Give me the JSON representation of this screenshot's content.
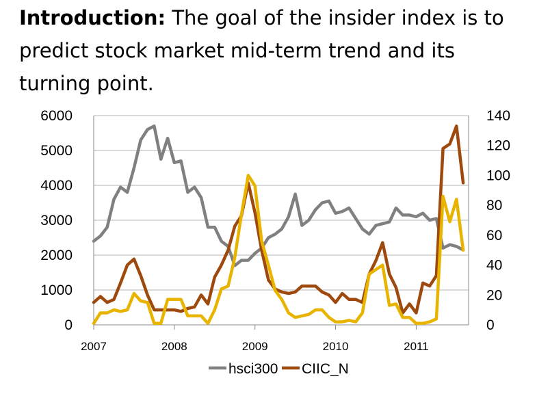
{
  "intro": {
    "heading": "Introduction:",
    "body": "The goal of the insider index is to predict stock market mid-term trend and its turning point."
  },
  "chart_data": {
    "type": "line",
    "title": "",
    "xlabel": "",
    "ylabel": "",
    "x_range": [
      2007,
      2011.65
    ],
    "x_ticks": [
      "2007",
      "2008",
      "2009",
      "2010",
      "2011"
    ],
    "y_left": {
      "range": [
        0,
        6000
      ],
      "ticks": [
        "0",
        "1000",
        "2000",
        "3000",
        "4000",
        "5000",
        "6000"
      ]
    },
    "y_right": {
      "range": [
        0,
        140
      ],
      "ticks": [
        "0",
        "20",
        "40",
        "60",
        "80",
        "100",
        "120",
        "140"
      ]
    },
    "grid": true,
    "legend_position": "bottom",
    "series": [
      {
        "name": "hsci300",
        "axis": "left",
        "color": "#808080",
        "x": [
          2007.0,
          2007.083,
          2007.167,
          2007.25,
          2007.333,
          2007.417,
          2007.5,
          2007.583,
          2007.667,
          2007.75,
          2007.833,
          2007.917,
          2008.0,
          2008.083,
          2008.167,
          2008.25,
          2008.333,
          2008.417,
          2008.5,
          2008.583,
          2008.667,
          2008.75,
          2008.833,
          2008.917,
          2009.0,
          2009.083,
          2009.167,
          2009.25,
          2009.333,
          2009.417,
          2009.5,
          2009.583,
          2009.667,
          2009.75,
          2009.833,
          2009.917,
          2010.0,
          2010.083,
          2010.167,
          2010.25,
          2010.333,
          2010.417,
          2010.5,
          2010.583,
          2010.667,
          2010.75,
          2010.833,
          2010.917,
          2011.0,
          2011.083,
          2011.167,
          2011.25,
          2011.333,
          2011.417,
          2011.5,
          2011.583
        ],
        "values": [
          2400,
          2550,
          2800,
          3600,
          3950,
          3800,
          4500,
          5300,
          5600,
          5700,
          4750,
          5350,
          4650,
          4700,
          3800,
          3950,
          3650,
          2800,
          2800,
          2400,
          2250,
          1700,
          1850,
          1850,
          2050,
          2200,
          2500,
          2600,
          2750,
          3100,
          3750,
          2850,
          3000,
          3300,
          3500,
          3550,
          3200,
          3250,
          3350,
          3050,
          2750,
          2600,
          2850,
          2900,
          2950,
          3350,
          3150,
          3150,
          3100,
          3200,
          3000,
          3050,
          2200,
          2300,
          2250,
          2150
        ]
      },
      {
        "name": "CIIC_N",
        "axis": "right",
        "color": "#9E4A0F",
        "x": [
          2007.0,
          2007.083,
          2007.167,
          2007.25,
          2007.333,
          2007.417,
          2007.5,
          2007.583,
          2007.667,
          2007.75,
          2007.833,
          2007.917,
          2008.0,
          2008.083,
          2008.167,
          2008.25,
          2008.333,
          2008.417,
          2008.5,
          2008.583,
          2008.667,
          2008.75,
          2008.833,
          2008.917,
          2009.0,
          2009.083,
          2009.167,
          2009.25,
          2009.333,
          2009.417,
          2009.5,
          2009.583,
          2009.667,
          2009.75,
          2009.833,
          2009.917,
          2010.0,
          2010.083,
          2010.167,
          2010.25,
          2010.333,
          2010.417,
          2010.5,
          2010.583,
          2010.667,
          2010.75,
          2010.833,
          2010.917,
          2011.0,
          2011.083,
          2011.167,
          2011.25,
          2011.333,
          2011.417,
          2011.5,
          2011.583
        ],
        "values": [
          15,
          19,
          15,
          17,
          28,
          40,
          44,
          33,
          20,
          10,
          10,
          10,
          10,
          9,
          11,
          12,
          20,
          14,
          32,
          40,
          50,
          66,
          73,
          95,
          75,
          50,
          30,
          24,
          22,
          21,
          22,
          26,
          26,
          26,
          22,
          20,
          15,
          21,
          17,
          17,
          15,
          34,
          43,
          55,
          34,
          25,
          8,
          14,
          8,
          28,
          26,
          33,
          118,
          121,
          133,
          95
        ]
      },
      {
        "name": "",
        "axis": "right",
        "color": "#E8B400",
        "x": [
          2007.0,
          2007.083,
          2007.167,
          2007.25,
          2007.333,
          2007.417,
          2007.5,
          2007.583,
          2007.667,
          2007.75,
          2007.833,
          2007.917,
          2008.0,
          2008.083,
          2008.167,
          2008.25,
          2008.333,
          2008.417,
          2008.5,
          2008.583,
          2008.667,
          2008.75,
          2008.833,
          2008.917,
          2009.0,
          2009.083,
          2009.167,
          2009.25,
          2009.333,
          2009.417,
          2009.5,
          2009.583,
          2009.667,
          2009.75,
          2009.833,
          2009.917,
          2010.0,
          2010.083,
          2010.167,
          2010.25,
          2010.333,
          2010.417,
          2010.5,
          2010.583,
          2010.667,
          2010.75,
          2010.833,
          2010.917,
          2011.0,
          2011.083,
          2011.167,
          2011.25,
          2011.333,
          2011.417,
          2011.5,
          2011.583
        ],
        "values": [
          1,
          8,
          8,
          10,
          9,
          10,
          21,
          16,
          15,
          1,
          1,
          17,
          17,
          17,
          6,
          6,
          6,
          1,
          10,
          24,
          26,
          45,
          74,
          100,
          93,
          56,
          40,
          23,
          17,
          8,
          5,
          6,
          7,
          10,
          10,
          5,
          2,
          2,
          3,
          2,
          8,
          34,
          37,
          40,
          13,
          14,
          5,
          5,
          1,
          1,
          2,
          4,
          86,
          69,
          84,
          50
        ]
      }
    ]
  }
}
